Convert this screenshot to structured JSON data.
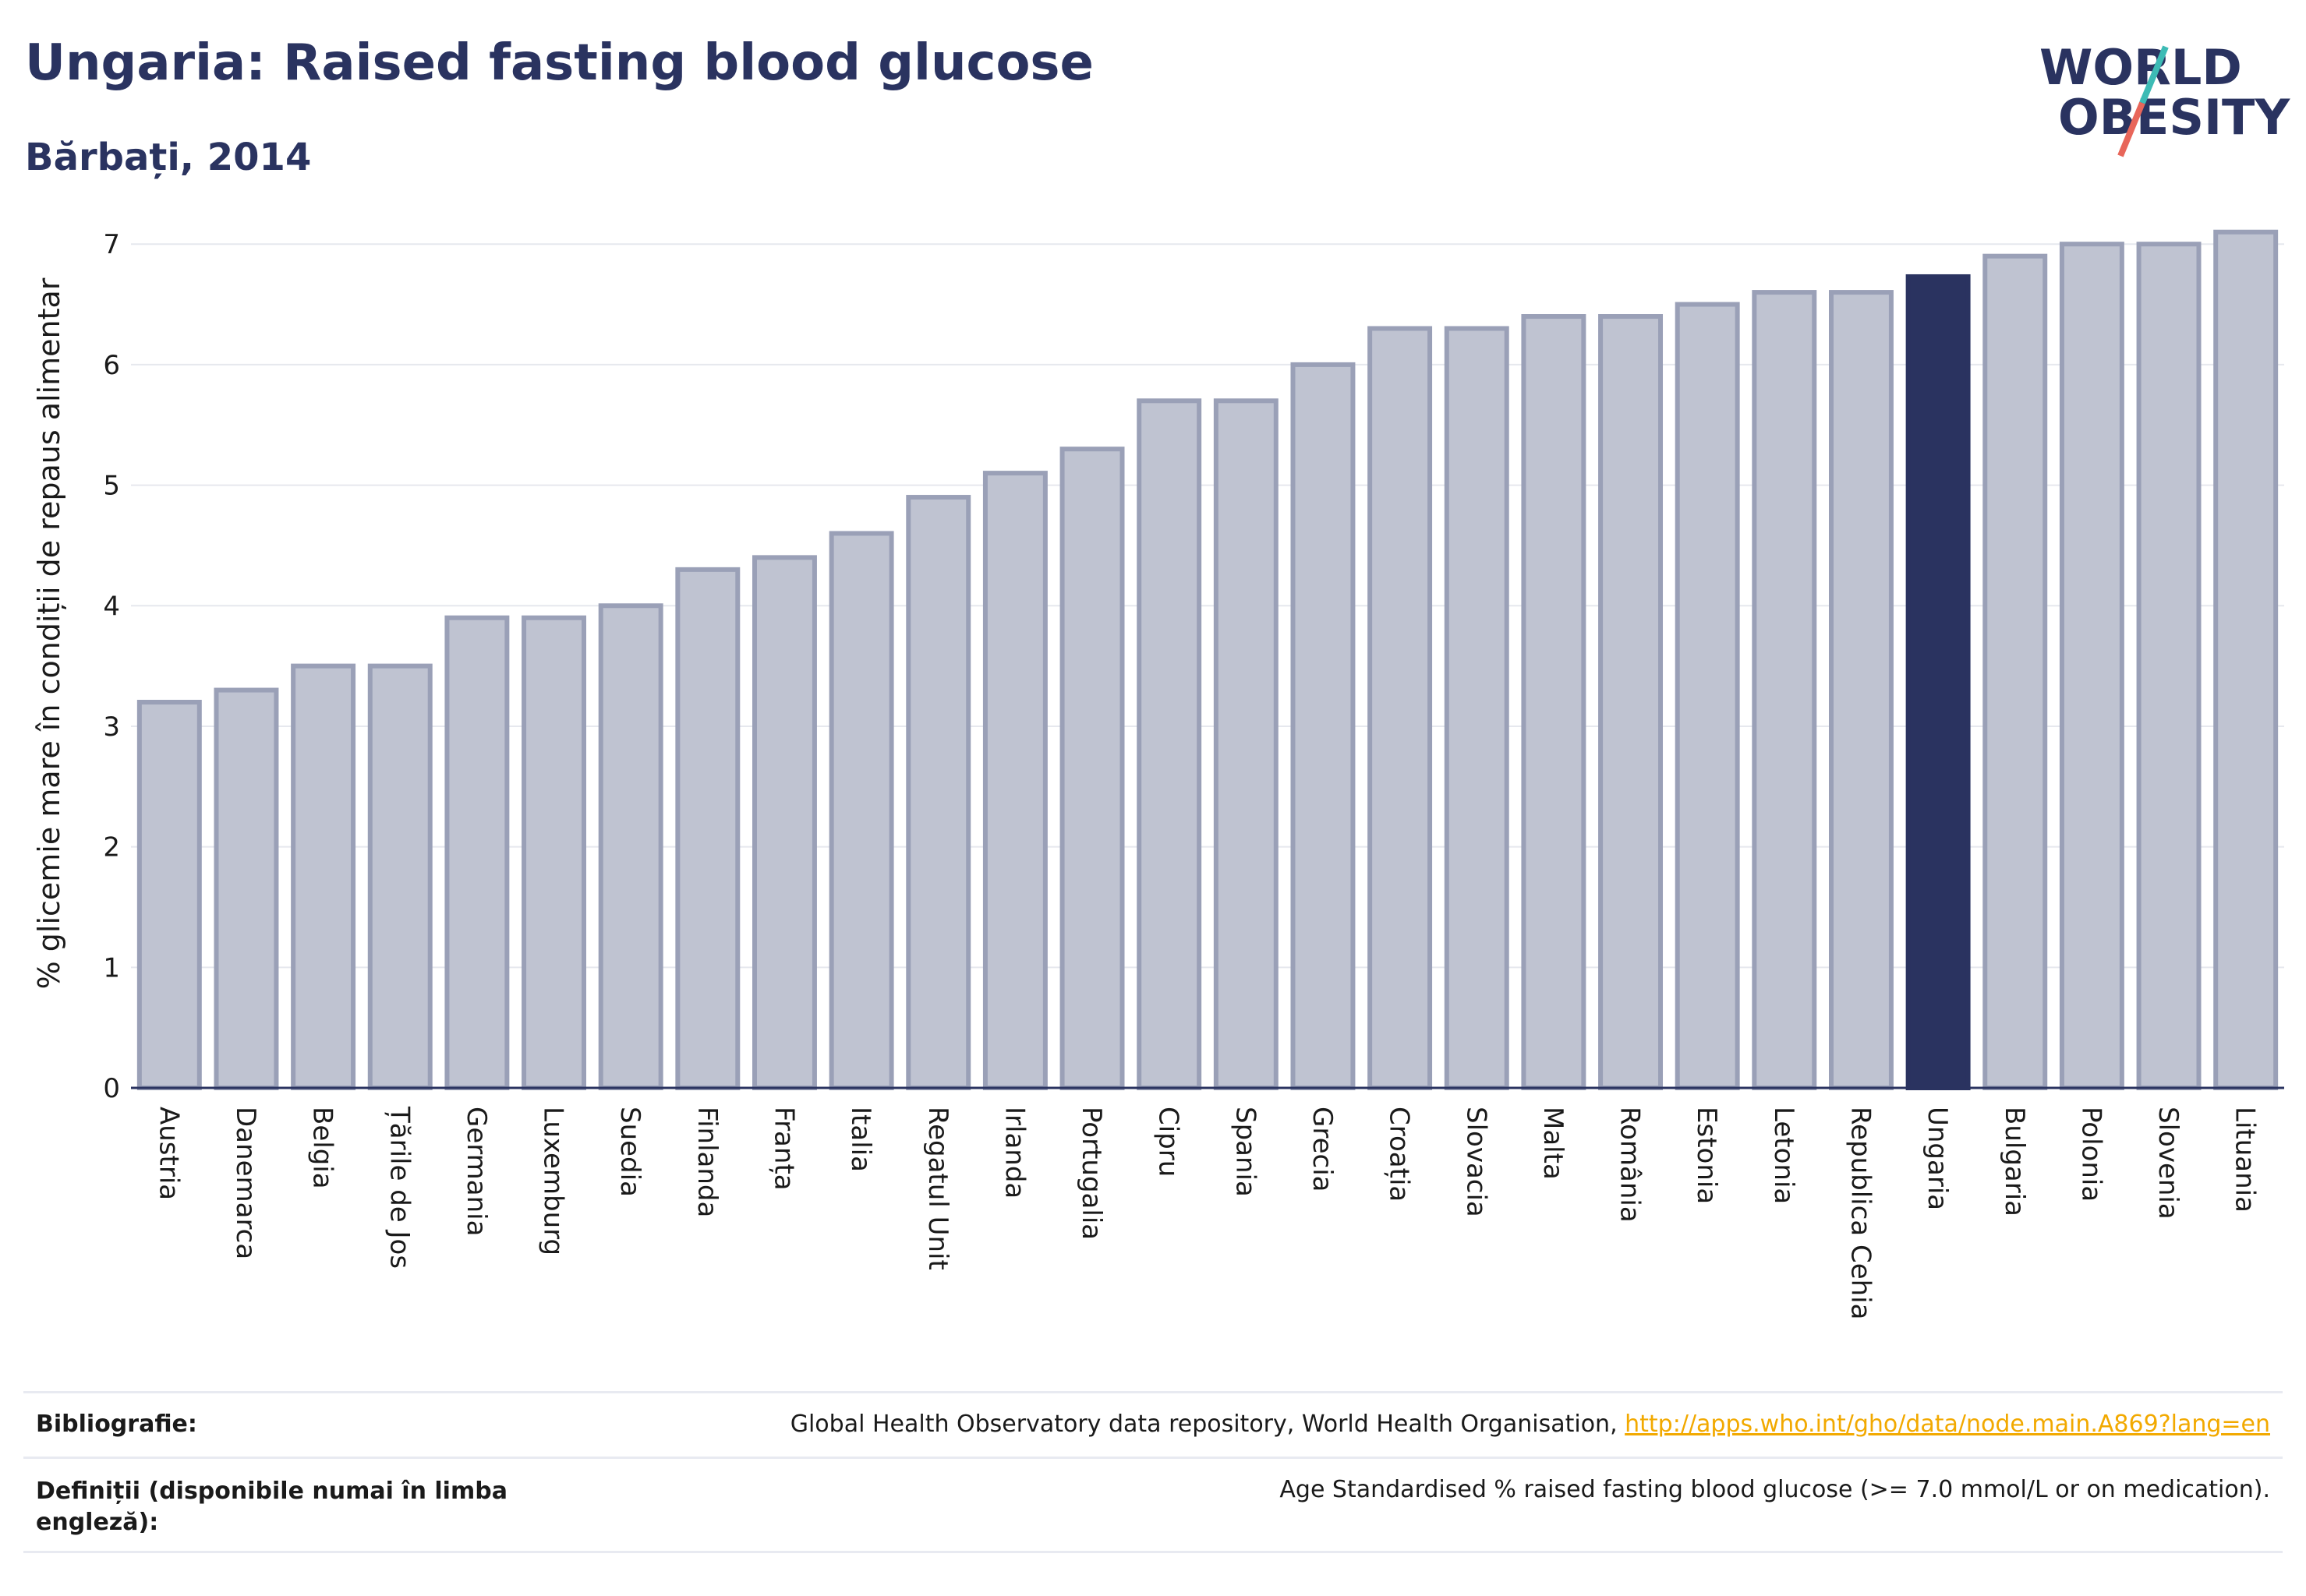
{
  "header": {
    "title": "Ungaria: Raised fasting blood glucose",
    "subtitle": "Bărbați, 2014"
  },
  "logo": {
    "line1": "WORLD",
    "line2": "OBESITY",
    "colors": {
      "text": "#2a3360",
      "slash_top": "#3dbbb5",
      "slash_bottom": "#e8665a"
    }
  },
  "colors": {
    "bar": "#bfc3d1",
    "bar_border": "#9aa0b7",
    "highlight": "#2a3360",
    "grid": "#e6e8ee",
    "axis": "#2a3360"
  },
  "chart_data": {
    "type": "bar",
    "ylabel": "% glicemie mare în condiții de repaus alimentar",
    "xlabel": "",
    "ylim": [
      0,
      7.15
    ],
    "yticks": [
      0,
      1,
      2,
      3,
      4,
      5,
      6,
      7
    ],
    "grid": true,
    "highlight": "Ungaria",
    "categories": [
      "Austria",
      "Danemarca",
      "Belgia",
      "Țările de Jos",
      "Germania",
      "Luxemburg",
      "Suedia",
      "Finlanda",
      "Franța",
      "Italia",
      "Regatul Unit",
      "Irlanda",
      "Portugalia",
      "Cipru",
      "Spania",
      "Grecia",
      "Croația",
      "Slovacia",
      "Malta",
      "România",
      "Estonia",
      "Letonia",
      "Republica Cehia",
      "Ungaria",
      "Bulgaria",
      "Polonia",
      "Slovenia",
      "Lituania"
    ],
    "values": [
      3.2,
      3.3,
      3.5,
      3.5,
      3.9,
      3.9,
      4.0,
      4.3,
      4.4,
      4.6,
      4.9,
      5.1,
      5.3,
      5.7,
      5.7,
      6.0,
      6.3,
      6.3,
      6.4,
      6.4,
      6.5,
      6.6,
      6.6,
      6.73,
      6.9,
      7.0,
      7.0,
      7.1
    ]
  },
  "footer": {
    "bibliography_label": "Bibliografie:",
    "bibliography_text": "Global Health Observatory data repository, World Health Organisation, ",
    "bibliography_link": "http://apps.who.int/gho/data/node.main.A869?lang=en",
    "definitions_label": "Definiții (disponibile numai în limba engleză):",
    "definitions_text": "Age Standardised % raised fasting blood glucose (>= 7.0 mmol/L or on medication)."
  }
}
